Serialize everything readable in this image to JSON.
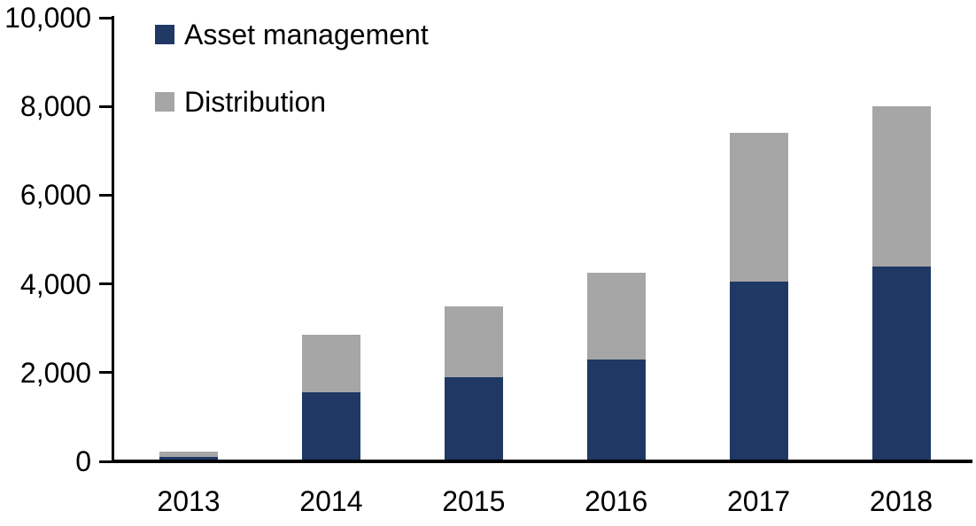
{
  "chart_data": {
    "type": "bar",
    "stacked": true,
    "title": "",
    "xlabel": "",
    "ylabel": "",
    "categories": [
      "2013",
      "2014",
      "2015",
      "2016",
      "2017",
      "2018"
    ],
    "series": [
      {
        "name": "Asset management",
        "color": "#1F3864",
        "values": [
          100,
          1550,
          1900,
          2300,
          4050,
          4400
        ]
      },
      {
        "name": "Distribution",
        "color": "#A6A6A6",
        "values": [
          120,
          1300,
          1600,
          1950,
          3350,
          3600
        ]
      }
    ],
    "stack_totals": [
      220,
      2850,
      3500,
      4250,
      7400,
      8000
    ],
    "ylim": [
      0,
      10000
    ],
    "yticks": [
      0,
      2000,
      4000,
      6000,
      8000,
      10000
    ],
    "ytick_labels": [
      "0",
      "2,000",
      "4,000",
      "6,000",
      "8,000",
      "10,000"
    ],
    "grid": false,
    "legend_position": "top-left",
    "axis_color": "#000000",
    "text_color": "#000000",
    "background": "#FFFFFF"
  }
}
